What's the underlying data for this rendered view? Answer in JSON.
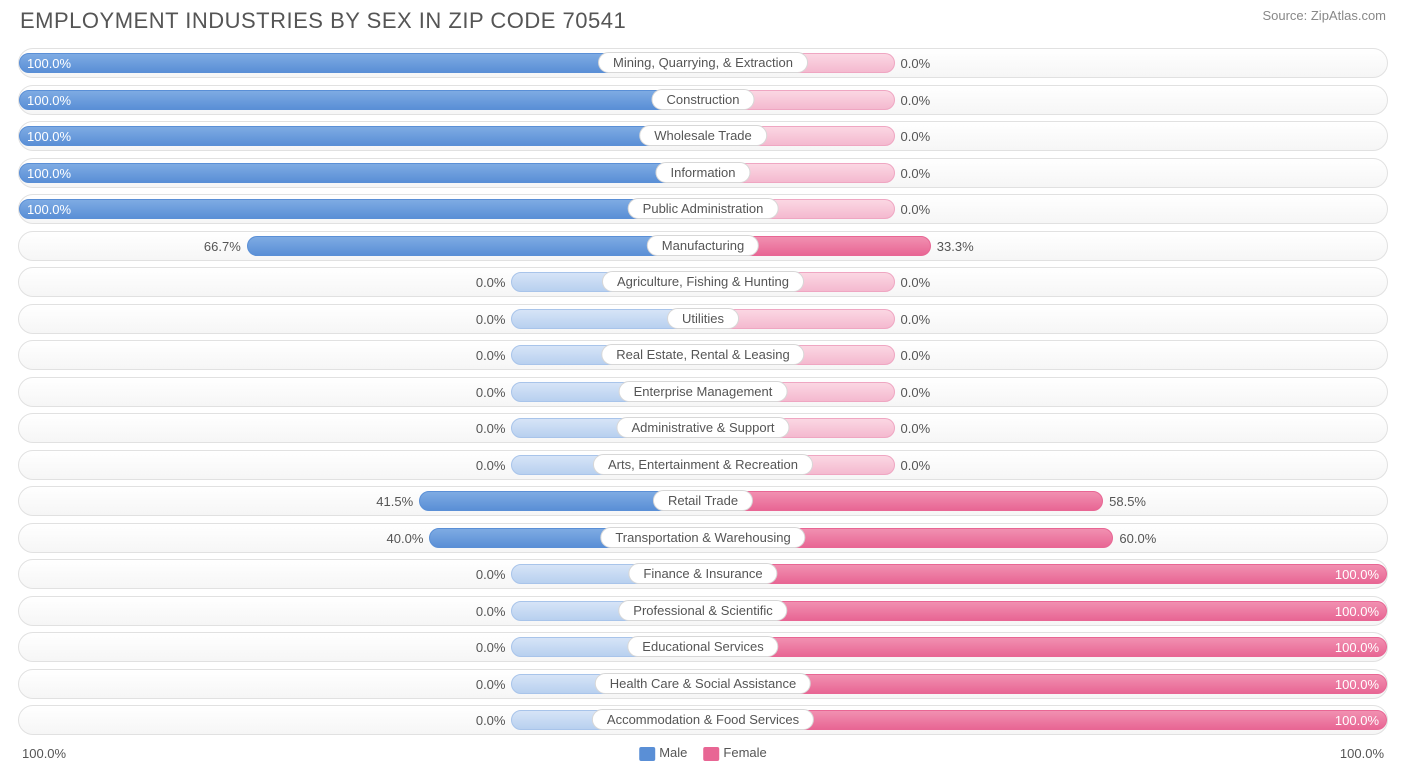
{
  "title": "EMPLOYMENT INDUSTRIES BY SEX IN ZIP CODE 70541",
  "source": "Source: ZipAtlas.com",
  "chart": {
    "type": "diverging-bar",
    "male_color": "#5a8fd6",
    "male_grad_top": "#7eabe3",
    "female_color": "#e86694",
    "female_grad_top": "#f190b1",
    "neutral_bar_pct": 28,
    "axis_left": "100.0%",
    "axis_right": "100.0%",
    "legend": {
      "male": "Male",
      "female": "Female"
    },
    "rows": [
      {
        "label": "Mining, Quarrying, & Extraction",
        "male": 100.0,
        "female": 0.0
      },
      {
        "label": "Construction",
        "male": 100.0,
        "female": 0.0
      },
      {
        "label": "Wholesale Trade",
        "male": 100.0,
        "female": 0.0
      },
      {
        "label": "Information",
        "male": 100.0,
        "female": 0.0
      },
      {
        "label": "Public Administration",
        "male": 100.0,
        "female": 0.0
      },
      {
        "label": "Manufacturing",
        "male": 66.7,
        "female": 33.3
      },
      {
        "label": "Agriculture, Fishing & Hunting",
        "male": 0.0,
        "female": 0.0
      },
      {
        "label": "Utilities",
        "male": 0.0,
        "female": 0.0
      },
      {
        "label": "Real Estate, Rental & Leasing",
        "male": 0.0,
        "female": 0.0
      },
      {
        "label": "Enterprise Management",
        "male": 0.0,
        "female": 0.0
      },
      {
        "label": "Administrative & Support",
        "male": 0.0,
        "female": 0.0
      },
      {
        "label": "Arts, Entertainment & Recreation",
        "male": 0.0,
        "female": 0.0
      },
      {
        "label": "Retail Trade",
        "male": 41.5,
        "female": 58.5
      },
      {
        "label": "Transportation & Warehousing",
        "male": 40.0,
        "female": 60.0
      },
      {
        "label": "Finance & Insurance",
        "male": 0.0,
        "female": 100.0
      },
      {
        "label": "Professional & Scientific",
        "male": 0.0,
        "female": 100.0
      },
      {
        "label": "Educational Services",
        "male": 0.0,
        "female": 100.0
      },
      {
        "label": "Health Care & Social Assistance",
        "male": 0.0,
        "female": 100.0
      },
      {
        "label": "Accommodation & Food Services",
        "male": 0.0,
        "female": 100.0
      }
    ]
  }
}
